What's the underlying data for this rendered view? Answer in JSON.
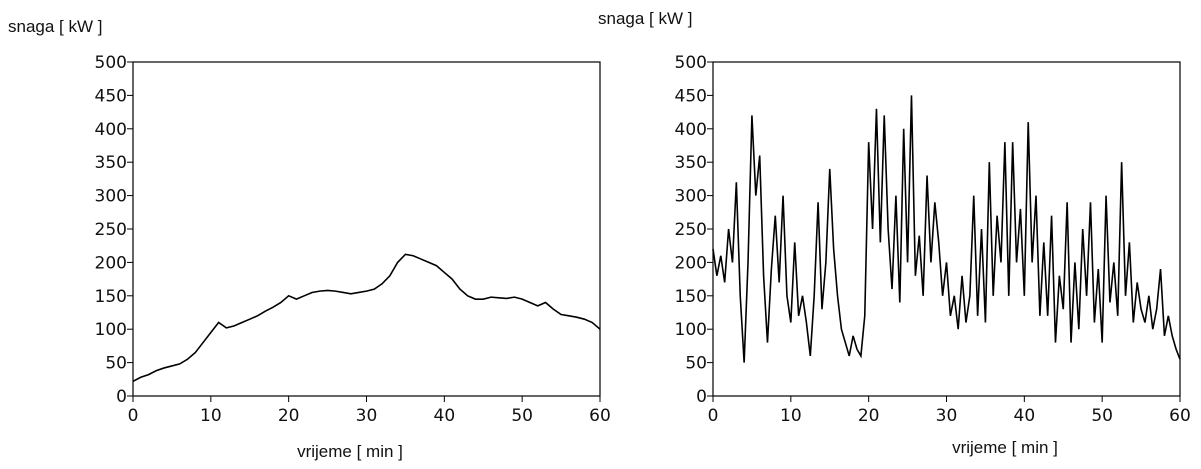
{
  "chart_data": [
    {
      "type": "line",
      "y_label": "snaga [ kW ]",
      "x_label": "vrijeme [ min ]",
      "x": [
        0,
        1,
        2,
        3,
        4,
        5,
        6,
        7,
        8,
        9,
        10,
        11,
        12,
        13,
        14,
        15,
        16,
        17,
        18,
        19,
        20,
        21,
        22,
        23,
        24,
        25,
        26,
        27,
        28,
        29,
        30,
        31,
        32,
        33,
        34,
        35,
        36,
        37,
        38,
        39,
        40,
        41,
        42,
        43,
        44,
        45,
        46,
        47,
        48,
        49,
        50,
        51,
        52,
        53,
        54,
        55,
        56,
        57,
        58,
        59,
        60
      ],
      "series": [
        {
          "color": "#000000",
          "values": [
            22,
            28,
            32,
            38,
            42,
            45,
            48,
            55,
            65,
            80,
            95,
            110,
            102,
            105,
            110,
            115,
            120,
            127,
            133,
            140,
            150,
            145,
            150,
            155,
            157,
            158,
            157,
            155,
            153,
            155,
            157,
            160,
            168,
            180,
            200,
            212,
            210,
            205,
            200,
            195,
            185,
            175,
            160,
            150,
            145,
            145,
            148,
            147,
            146,
            148,
            145,
            140,
            135,
            140,
            130,
            122,
            120,
            118,
            115,
            110,
            100
          ]
        }
      ],
      "xlim": [
        0,
        60
      ],
      "ylim": [
        0,
        500
      ],
      "xticks": [
        0,
        10,
        20,
        30,
        40,
        50,
        60
      ],
      "yticks": [
        0,
        50,
        100,
        150,
        200,
        250,
        300,
        350,
        400,
        450,
        500
      ]
    },
    {
      "type": "line",
      "y_label": "snaga [ kW ]",
      "x_label": "vrijeme [ min ]",
      "x": [
        0,
        0.5,
        1,
        1.5,
        2,
        2.5,
        3,
        3.5,
        4,
        4.5,
        5,
        5.5,
        6,
        6.5,
        7,
        7.5,
        8,
        8.5,
        9,
        9.5,
        10,
        10.5,
        11,
        11.5,
        12,
        12.5,
        13,
        13.5,
        14,
        14.5,
        15,
        15.5,
        16,
        16.5,
        17,
        17.5,
        18,
        18.5,
        19,
        19.5,
        20,
        20.5,
        21,
        21.5,
        22,
        22.5,
        23,
        23.5,
        24,
        24.5,
        25,
        25.5,
        26,
        26.5,
        27,
        27.5,
        28,
        28.5,
        29,
        29.5,
        30,
        30.5,
        31,
        31.5,
        32,
        32.5,
        33,
        33.5,
        34,
        34.5,
        35,
        35.5,
        36,
        36.5,
        37,
        37.5,
        38,
        38.5,
        39,
        39.5,
        40,
        40.5,
        41,
        41.5,
        42,
        42.5,
        43,
        43.5,
        44,
        44.5,
        45,
        45.5,
        46,
        46.5,
        47,
        47.5,
        48,
        48.5,
        49,
        49.5,
        50,
        50.5,
        51,
        51.5,
        52,
        52.5,
        53,
        53.5,
        54,
        54.5,
        55,
        55.5,
        56,
        56.5,
        57,
        57.5,
        58,
        58.5,
        59,
        59.5,
        60
      ],
      "series": [
        {
          "color": "#000000",
          "values": [
            220,
            180,
            210,
            170,
            250,
            200,
            320,
            150,
            50,
            200,
            420,
            300,
            360,
            180,
            80,
            190,
            270,
            170,
            300,
            150,
            110,
            230,
            120,
            150,
            110,
            60,
            150,
            290,
            130,
            200,
            340,
            220,
            150,
            100,
            80,
            60,
            90,
            70,
            60,
            120,
            380,
            250,
            430,
            230,
            420,
            250,
            160,
            300,
            140,
            400,
            200,
            450,
            180,
            240,
            150,
            330,
            200,
            290,
            230,
            150,
            200,
            120,
            150,
            100,
            180,
            110,
            150,
            300,
            120,
            250,
            110,
            350,
            150,
            270,
            200,
            380,
            150,
            380,
            200,
            280,
            150,
            410,
            200,
            300,
            120,
            230,
            120,
            270,
            80,
            180,
            130,
            290,
            80,
            200,
            100,
            250,
            150,
            290,
            110,
            190,
            80,
            300,
            140,
            200,
            120,
            350,
            150,
            230,
            110,
            170,
            130,
            110,
            150,
            100,
            130,
            190,
            90,
            120,
            90,
            70,
            55
          ]
        }
      ],
      "xlim": [
        0,
        60
      ],
      "ylim": [
        0,
        500
      ],
      "xticks": [
        0,
        10,
        20,
        30,
        40,
        50,
        60
      ],
      "yticks": [
        0,
        50,
        100,
        150,
        200,
        250,
        300,
        350,
        400,
        450,
        500
      ]
    }
  ]
}
